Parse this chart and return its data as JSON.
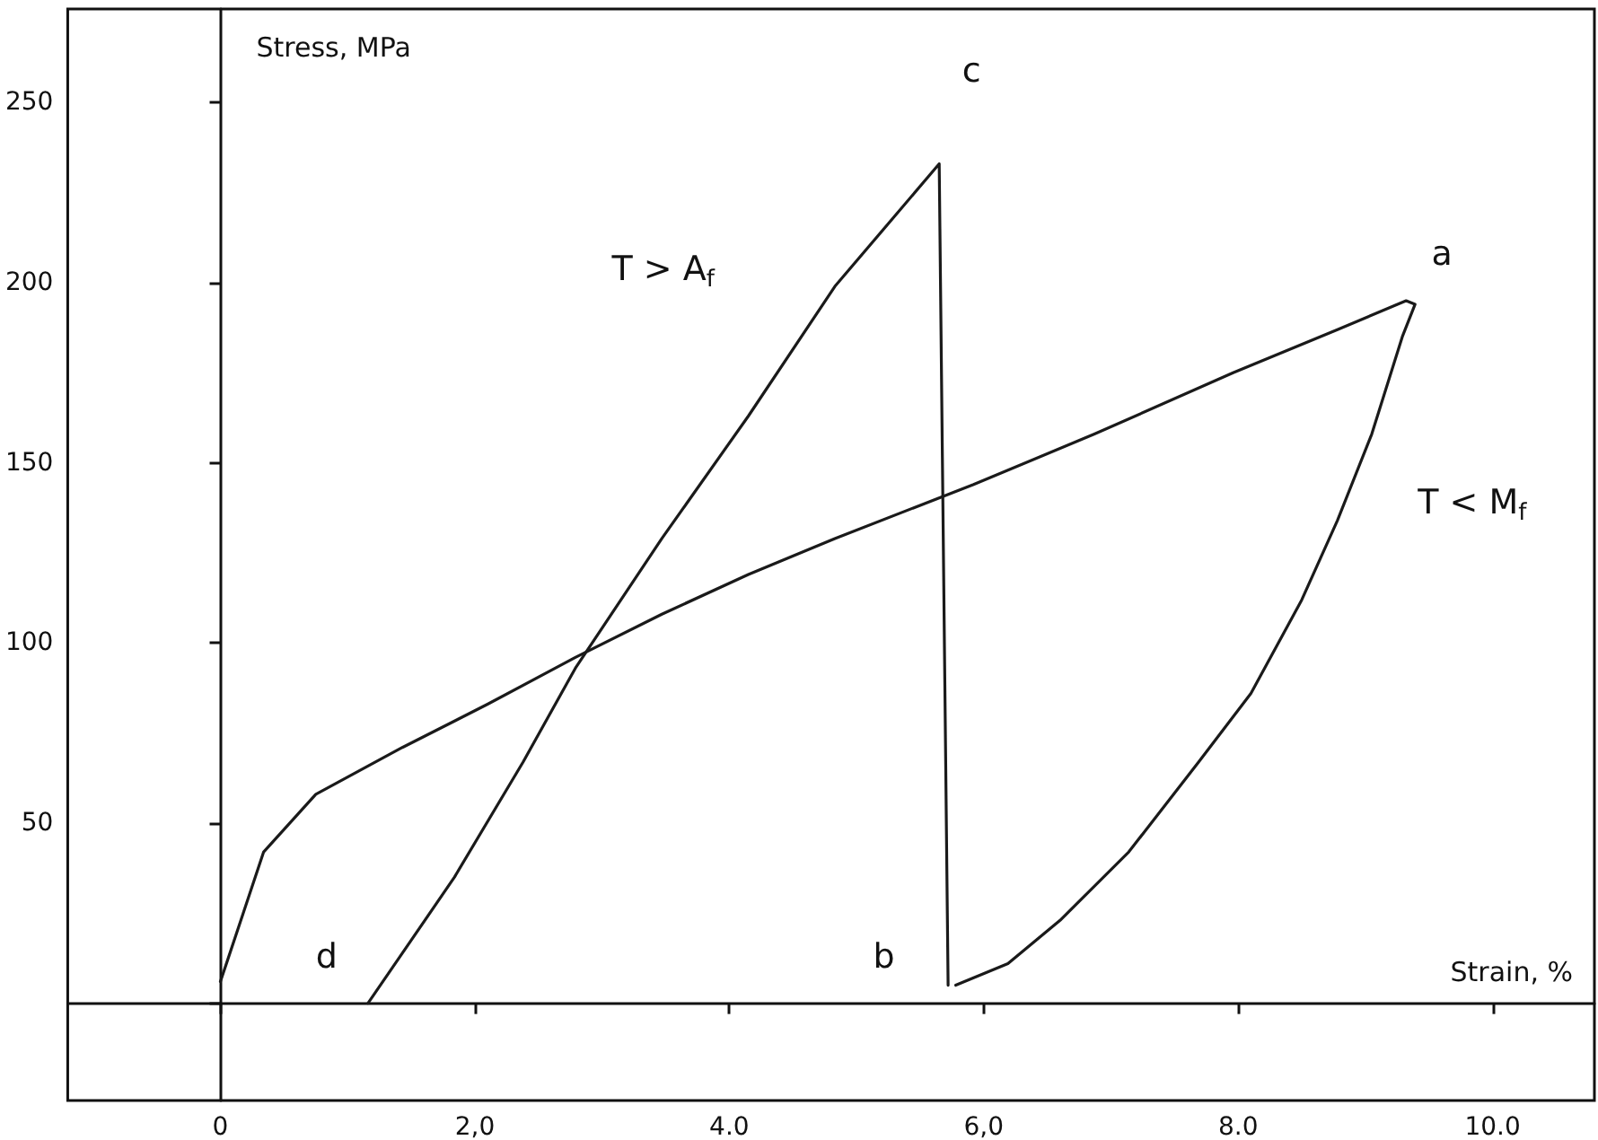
{
  "chart_data": {
    "type": "line",
    "xlabel": "Strain, %",
    "ylabel": "Stress, MPa",
    "xlim": [
      -1.2,
      10.8
    ],
    "ylim": [
      -27,
      276
    ],
    "xticks": [
      {
        "value": 0,
        "label": "0"
      },
      {
        "value": 2,
        "label": "2,0"
      },
      {
        "value": 4,
        "label": "4.0"
      },
      {
        "value": 6,
        "label": "6,0"
      },
      {
        "value": 8,
        "label": "8.0"
      },
      {
        "value": 10,
        "label": "10.0"
      }
    ],
    "yticks": [
      {
        "value": 0,
        "label": null
      },
      50,
      100,
      150,
      200,
      250
    ],
    "marker": "none",
    "line_style": "solid",
    "series": [
      {
        "color": "#1a1a1a",
        "x": [
          0,
          0.34,
          0.75,
          1.43,
          2.1,
          2.79,
          3.47,
          4.15,
          4.83,
          5.92,
          6.87,
          7.96,
          8.78,
          9.32,
          9.39,
          9.29,
          9.05,
          8.78,
          8.5,
          8.1,
          7.69,
          7.14,
          6.6,
          6.19,
          5.78
        ],
        "values": [
          6,
          42,
          58,
          71,
          83,
          96,
          108,
          119,
          129,
          144,
          158,
          175,
          187,
          195,
          194,
          185,
          158,
          134,
          112,
          86,
          67,
          42,
          23,
          11,
          5
        ]
      },
      {
        "color": "#1a1a1a",
        "x": [
          1.16,
          1.84,
          2.38,
          2.79,
          3.47,
          4.15,
          4.83,
          5.65,
          5.72
        ],
        "values": [
          0,
          35,
          67,
          93,
          129,
          163,
          199,
          233,
          5
        ]
      }
    ],
    "annotations": [
      {
        "text": "a",
        "x": 9.39,
        "y": 194
      },
      {
        "text": "c",
        "x": 5.65,
        "y": 233
      },
      {
        "text": "b",
        "x": 5.78,
        "y": 5
      },
      {
        "text": "d",
        "x": 1.16,
        "y": 0
      },
      "T > A$_{f}$",
      {
        "text": "T < M$_{f}$",
        "x": 8.78,
        "y": 134
      }
    ]
  }
}
